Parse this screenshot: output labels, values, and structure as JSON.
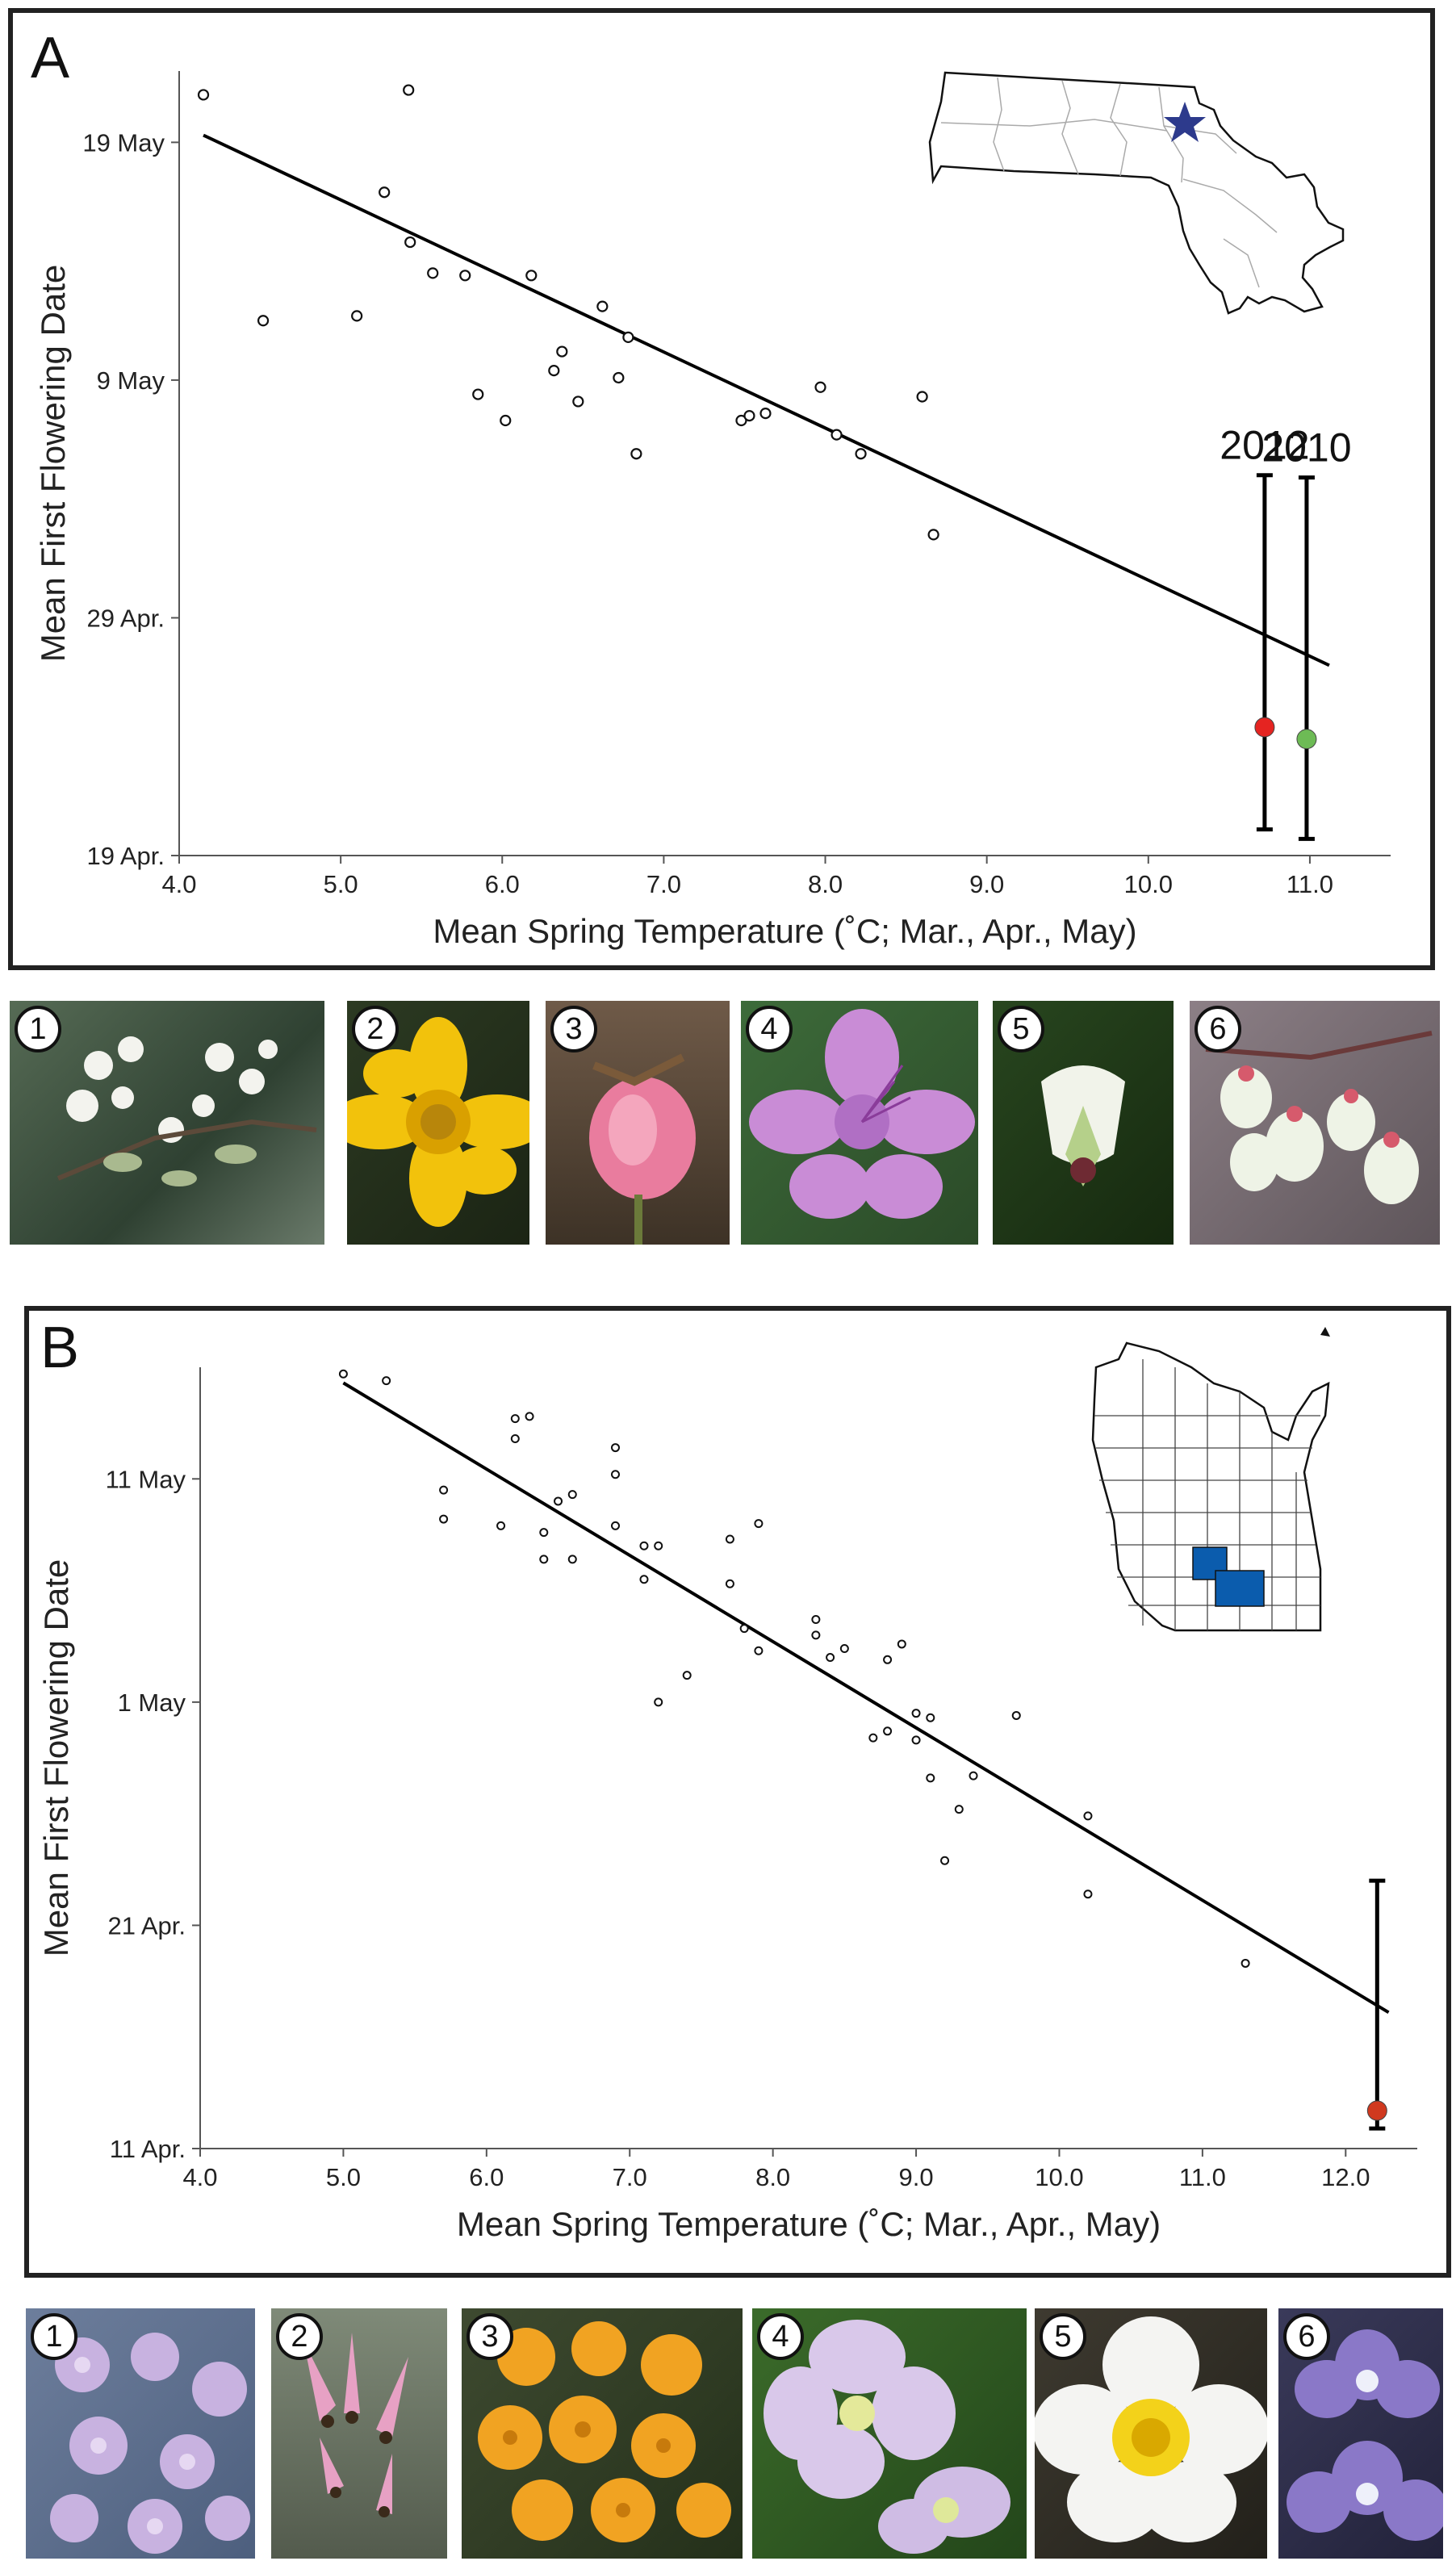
{
  "chart_data": [
    {
      "panel": "A",
      "type": "scatter",
      "title": "",
      "xlabel": "Mean Spring Temperature (˚C; Mar., Apr., May)",
      "ylabel": "Mean First Flowering Date",
      "xlim": [
        4.0,
        11.5
      ],
      "x_ticks": [
        "4.0",
        "5.0",
        "6.0",
        "7.0",
        "8.0",
        "9.0",
        "10.0",
        "11.0"
      ],
      "y_ticks": [
        {
          "label": "19 Apr.",
          "day": 0
        },
        {
          "label": "29 Apr.",
          "day": 10
        },
        {
          "label": "9 May",
          "day": 20
        },
        {
          "label": "19 May",
          "day": 30
        }
      ],
      "ylim_days": [
        0,
        33
      ],
      "points": [
        {
          "x": 4.15,
          "y": 32.0
        },
        {
          "x": 5.42,
          "y": 32.2
        },
        {
          "x": 5.27,
          "y": 27.9
        },
        {
          "x": 5.43,
          "y": 25.8
        },
        {
          "x": 5.57,
          "y": 24.5
        },
        {
          "x": 5.77,
          "y": 24.4
        },
        {
          "x": 6.18,
          "y": 24.4
        },
        {
          "x": 4.52,
          "y": 22.5
        },
        {
          "x": 5.1,
          "y": 22.7
        },
        {
          "x": 6.62,
          "y": 23.1
        },
        {
          "x": 6.78,
          "y": 21.8
        },
        {
          "x": 6.37,
          "y": 21.2
        },
        {
          "x": 6.32,
          "y": 20.4
        },
        {
          "x": 6.72,
          "y": 20.1
        },
        {
          "x": 5.85,
          "y": 19.4
        },
        {
          "x": 6.47,
          "y": 19.1
        },
        {
          "x": 6.02,
          "y": 18.3
        },
        {
          "x": 6.83,
          "y": 16.9
        },
        {
          "x": 7.48,
          "y": 18.3
        },
        {
          "x": 7.53,
          "y": 18.5
        },
        {
          "x": 7.63,
          "y": 18.6
        },
        {
          "x": 7.97,
          "y": 19.7
        },
        {
          "x": 8.07,
          "y": 17.7
        },
        {
          "x": 8.22,
          "y": 16.9
        },
        {
          "x": 8.6,
          "y": 19.3
        },
        {
          "x": 8.67,
          "y": 13.5
        }
      ],
      "regression": {
        "x1": 4.15,
        "y1": 30.3,
        "x2": 11.12,
        "y2": 8.0
      },
      "highlights": [
        {
          "year": "2012",
          "x": 10.72,
          "y": 5.4,
          "ci": [
            1.1,
            16.0
          ],
          "color": "#e52421"
        },
        {
          "year": "2010",
          "x": 10.98,
          "y": 4.9,
          "ci": [
            0.7,
            15.9
          ],
          "color": "#6dbb55"
        }
      ],
      "legend": "none",
      "grid": false
    },
    {
      "panel": "B",
      "type": "scatter",
      "title": "",
      "xlabel": "Mean Spring Temperature (˚C; Mar., Apr., May)",
      "ylabel": "Mean First Flowering Date",
      "xlim": [
        4.0,
        12.5
      ],
      "x_ticks": [
        "4.0",
        "5.0",
        "6.0",
        "7.0",
        "8.0",
        "9.0",
        "10.0",
        "11.0",
        "12.0"
      ],
      "y_ticks": [
        {
          "label": "11 Apr.",
          "day": 0
        },
        {
          "label": "21 Apr.",
          "day": 10
        },
        {
          "label": "1 May",
          "day": 20
        },
        {
          "label": "11 May",
          "day": 30
        }
      ],
      "ylim_days": [
        0,
        35
      ],
      "points": [
        {
          "x": 5.0,
          "y": 34.7
        },
        {
          "x": 5.3,
          "y": 34.4
        },
        {
          "x": 6.2,
          "y": 32.7
        },
        {
          "x": 6.3,
          "y": 32.8
        },
        {
          "x": 6.2,
          "y": 31.8
        },
        {
          "x": 6.9,
          "y": 31.4
        },
        {
          "x": 5.7,
          "y": 29.5
        },
        {
          "x": 6.6,
          "y": 29.3
        },
        {
          "x": 6.9,
          "y": 30.2
        },
        {
          "x": 6.5,
          "y": 29.0
        },
        {
          "x": 5.7,
          "y": 28.2
        },
        {
          "x": 6.1,
          "y": 27.9
        },
        {
          "x": 6.9,
          "y": 27.9
        },
        {
          "x": 6.4,
          "y": 27.6
        },
        {
          "x": 7.1,
          "y": 27.0
        },
        {
          "x": 7.2,
          "y": 27.0
        },
        {
          "x": 6.4,
          "y": 26.4
        },
        {
          "x": 6.6,
          "y": 26.4
        },
        {
          "x": 7.7,
          "y": 27.3
        },
        {
          "x": 7.9,
          "y": 28.0
        },
        {
          "x": 7.1,
          "y": 25.5
        },
        {
          "x": 7.7,
          "y": 25.3
        },
        {
          "x": 7.8,
          "y": 23.3
        },
        {
          "x": 7.9,
          "y": 22.3
        },
        {
          "x": 8.3,
          "y": 23.7
        },
        {
          "x": 8.3,
          "y": 23.0
        },
        {
          "x": 8.5,
          "y": 22.4
        },
        {
          "x": 8.4,
          "y": 22.0
        },
        {
          "x": 8.9,
          "y": 22.6
        },
        {
          "x": 8.8,
          "y": 21.9
        },
        {
          "x": 7.4,
          "y": 21.2
        },
        {
          "x": 7.2,
          "y": 20.0
        },
        {
          "x": 9.0,
          "y": 19.5
        },
        {
          "x": 9.1,
          "y": 19.3
        },
        {
          "x": 9.7,
          "y": 19.4
        },
        {
          "x": 8.8,
          "y": 18.7
        },
        {
          "x": 8.7,
          "y": 18.4
        },
        {
          "x": 9.0,
          "y": 18.3
        },
        {
          "x": 9.1,
          "y": 16.6
        },
        {
          "x": 9.4,
          "y": 16.7
        },
        {
          "x": 9.3,
          "y": 15.2
        },
        {
          "x": 10.2,
          "y": 14.9
        },
        {
          "x": 9.2,
          "y": 12.9
        },
        {
          "x": 10.2,
          "y": 11.4
        },
        {
          "x": 11.3,
          "y": 8.3
        }
      ],
      "regression": {
        "x1": 5.0,
        "y1": 34.3,
        "x2": 12.3,
        "y2": 6.1
      },
      "highlights": [
        {
          "year": "",
          "x": 12.22,
          "y": 1.7,
          "ci": [
            0.9,
            12.0
          ],
          "color": "#d0391f"
        }
      ],
      "legend": "none",
      "grid": false
    }
  ],
  "panels": {
    "A": {
      "letter": "A",
      "year_labels": [
        "2012",
        "2010"
      ]
    },
    "B": {
      "letter": "B"
    }
  },
  "photos_A": [
    {
      "num": "1"
    },
    {
      "num": "2"
    },
    {
      "num": "3"
    },
    {
      "num": "4"
    },
    {
      "num": "5"
    },
    {
      "num": "6"
    }
  ],
  "photos_B": [
    {
      "num": "1"
    },
    {
      "num": "2"
    },
    {
      "num": "3"
    },
    {
      "num": "4"
    },
    {
      "num": "5"
    },
    {
      "num": "6"
    }
  ],
  "colors": {
    "highlight_2012": "#e52421",
    "highlight_2010": "#6dbb55",
    "map_star": "#2d3a8c",
    "wisconsin_counties": "#0b5cad"
  }
}
